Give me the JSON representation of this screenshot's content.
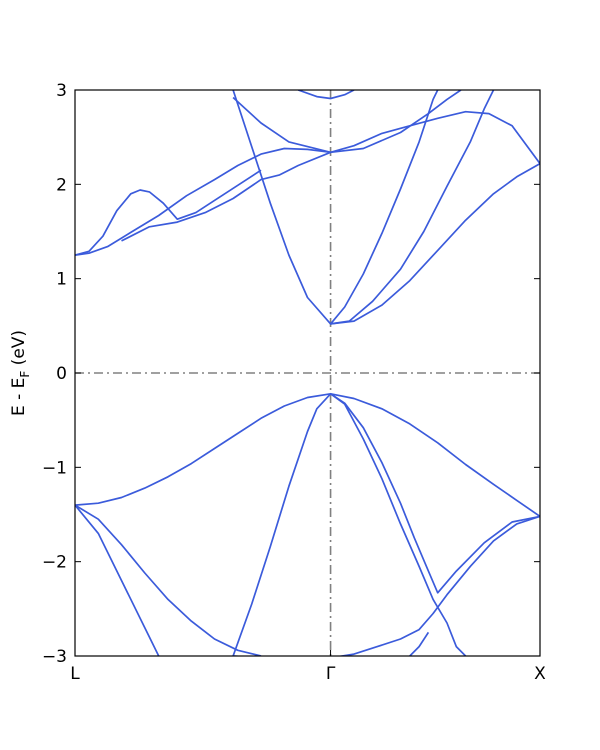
{
  "chart_data": {
    "type": "line",
    "xlabel": "",
    "ylabel": {
      "main": "E - E",
      "subscript": "F",
      "suffix": " (eV)"
    },
    "ylim": [
      -3,
      3
    ],
    "yticks": [
      {
        "value": 3,
        "label": "3"
      },
      {
        "value": 2,
        "label": "2"
      },
      {
        "value": 1,
        "label": "1"
      },
      {
        "value": 0,
        "label": "0"
      },
      {
        "value": -1,
        "label": "−1"
      },
      {
        "value": -2,
        "label": "−2"
      },
      {
        "value": -3,
        "label": "−3"
      }
    ],
    "xlim": [
      0,
      1
    ],
    "kpoints": [
      {
        "label": "L",
        "x": 0.0
      },
      {
        "label": "Γ",
        "x": 0.5496
      },
      {
        "label": "X",
        "x": 1.0
      }
    ],
    "fermi_level": 0,
    "grid": false,
    "line_color": "#3b5bdb",
    "ref_line_color": "#808080",
    "series": [
      {
        "points": [
          [
            0,
            1.25
          ],
          [
            0.03,
            1.27
          ],
          [
            0.07,
            1.34
          ],
          [
            0.12,
            1.49
          ],
          [
            0.18,
            1.67
          ],
          [
            0.24,
            1.88
          ],
          [
            0.3,
            2.05
          ],
          [
            0.35,
            2.2
          ],
          [
            0.4,
            2.32
          ],
          [
            0.45,
            2.38
          ],
          [
            0.5,
            2.37
          ],
          [
            0.5496,
            2.34
          ],
          [
            0.6,
            2.41
          ],
          [
            0.66,
            2.54
          ],
          [
            0.72,
            2.62
          ],
          [
            0.78,
            2.7
          ],
          [
            0.84,
            2.77
          ],
          [
            0.89,
            2.75
          ],
          [
            0.94,
            2.62
          ],
          [
            1.0,
            2.22
          ]
        ]
      },
      {
        "points": [
          [
            0,
            1.25
          ],
          [
            0.03,
            1.29
          ],
          [
            0.06,
            1.45
          ],
          [
            0.09,
            1.72
          ],
          [
            0.12,
            1.9
          ],
          [
            0.14,
            1.94
          ],
          [
            0.16,
            1.92
          ],
          [
            0.19,
            1.8
          ],
          [
            0.22,
            1.63
          ],
          [
            0.26,
            1.7
          ],
          [
            0.3,
            1.83
          ],
          [
            0.35,
            1.99
          ],
          [
            0.4,
            2.15
          ]
        ]
      },
      {
        "points": [
          [
            0,
            -1.4
          ],
          [
            0.05,
            -1.38
          ],
          [
            0.1,
            -1.32
          ],
          [
            0.15,
            -1.22
          ],
          [
            0.2,
            -1.1
          ],
          [
            0.25,
            -0.96
          ],
          [
            0.3,
            -0.8
          ],
          [
            0.35,
            -0.64
          ],
          [
            0.4,
            -0.48
          ],
          [
            0.45,
            -0.35
          ],
          [
            0.5,
            -0.26
          ],
          [
            0.5496,
            -0.22
          ],
          [
            0.6,
            -0.27
          ],
          [
            0.66,
            -0.38
          ],
          [
            0.72,
            -0.54
          ],
          [
            0.78,
            -0.74
          ],
          [
            0.84,
            -0.97
          ],
          [
            0.9,
            -1.18
          ],
          [
            0.95,
            -1.35
          ],
          [
            1.0,
            -1.52
          ]
        ]
      },
      {
        "points": [
          [
            0,
            -1.4
          ],
          [
            0.05,
            -1.55
          ],
          [
            0.1,
            -1.82
          ],
          [
            0.15,
            -2.12
          ],
          [
            0.2,
            -2.4
          ],
          [
            0.25,
            -2.63
          ],
          [
            0.3,
            -2.82
          ],
          [
            0.35,
            -2.94
          ],
          [
            0.4,
            -3.0
          ]
        ]
      },
      {
        "points": [
          [
            0,
            -1.4
          ],
          [
            0.05,
            -1.7
          ],
          [
            0.1,
            -2.2
          ],
          [
            0.15,
            -2.7
          ],
          [
            0.18,
            -3.0
          ]
        ]
      },
      {
        "points": [
          [
            0.34,
            -3.0
          ],
          [
            0.38,
            -2.45
          ],
          [
            0.42,
            -1.84
          ],
          [
            0.46,
            -1.2
          ],
          [
            0.5,
            -0.62
          ],
          [
            0.52,
            -0.38
          ],
          [
            0.5496,
            -0.22
          ],
          [
            0.58,
            -0.33
          ],
          [
            0.62,
            -0.7
          ],
          [
            0.66,
            -1.12
          ],
          [
            0.7,
            -1.6
          ],
          [
            0.74,
            -2.05
          ],
          [
            0.77,
            -2.4
          ],
          [
            0.8,
            -2.65
          ],
          [
            0.82,
            -2.9
          ],
          [
            0.84,
            -3.0
          ]
        ]
      },
      {
        "points": [
          [
            0.5496,
            -0.22
          ],
          [
            0.58,
            -0.32
          ],
          [
            0.62,
            -0.58
          ],
          [
            0.66,
            -0.95
          ],
          [
            0.7,
            -1.38
          ],
          [
            0.73,
            -1.75
          ],
          [
            0.76,
            -2.1
          ],
          [
            0.78,
            -2.33
          ],
          [
            0.82,
            -2.1
          ],
          [
            0.88,
            -1.8
          ],
          [
            0.94,
            -1.58
          ],
          [
            1.0,
            -1.52
          ]
        ]
      },
      {
        "points": [
          [
            0.34,
            -3.0
          ],
          [
            0.4,
            -3.02
          ],
          [
            0.45,
            -3.03
          ],
          [
            0.5496,
            -3.02
          ],
          [
            0.6,
            -2.98
          ],
          [
            0.65,
            -2.9
          ],
          [
            0.7,
            -2.82
          ],
          [
            0.74,
            -2.72
          ],
          [
            0.77,
            -2.55
          ],
          [
            0.8,
            -2.35
          ],
          [
            0.85,
            -2.05
          ],
          [
            0.9,
            -1.78
          ],
          [
            0.95,
            -1.6
          ],
          [
            1.0,
            -1.52
          ]
        ]
      },
      {
        "points": [
          [
            0.72,
            -3.0
          ],
          [
            0.74,
            -2.9
          ],
          [
            0.76,
            -2.75
          ]
        ]
      },
      {
        "points": [
          [
            0.34,
            3.0
          ],
          [
            0.38,
            2.4
          ],
          [
            0.42,
            1.8
          ],
          [
            0.46,
            1.25
          ],
          [
            0.5,
            0.8
          ],
          [
            0.5496,
            0.52
          ],
          [
            0.58,
            0.7
          ],
          [
            0.62,
            1.05
          ],
          [
            0.66,
            1.48
          ],
          [
            0.7,
            1.95
          ],
          [
            0.74,
            2.45
          ],
          [
            0.77,
            2.9
          ],
          [
            0.78,
            3.0
          ]
        ]
      },
      {
        "points": [
          [
            0.1,
            1.4
          ],
          [
            0.16,
            1.55
          ],
          [
            0.22,
            1.6
          ],
          [
            0.28,
            1.7
          ],
          [
            0.34,
            1.85
          ],
          [
            0.4,
            2.05
          ],
          [
            0.44,
            2.1
          ],
          [
            0.48,
            2.2
          ],
          [
            0.5496,
            2.34
          ]
        ]
      },
      {
        "points": [
          [
            0.5496,
            0.52
          ],
          [
            0.59,
            0.55
          ],
          [
            0.64,
            0.76
          ],
          [
            0.7,
            1.1
          ],
          [
            0.75,
            1.5
          ],
          [
            0.8,
            1.98
          ],
          [
            0.85,
            2.45
          ],
          [
            0.88,
            2.8
          ],
          [
            0.9,
            3.0
          ]
        ]
      },
      {
        "points": [
          [
            0.5496,
            0.52
          ],
          [
            0.6,
            0.55
          ],
          [
            0.66,
            0.72
          ],
          [
            0.72,
            0.98
          ],
          [
            0.78,
            1.3
          ],
          [
            0.84,
            1.62
          ],
          [
            0.9,
            1.9
          ],
          [
            0.95,
            2.08
          ],
          [
            1.0,
            2.22
          ]
        ]
      },
      {
        "points": [
          [
            0.34,
            2.92
          ],
          [
            0.4,
            2.65
          ],
          [
            0.46,
            2.45
          ],
          [
            0.5496,
            2.34
          ],
          [
            0.62,
            2.38
          ],
          [
            0.7,
            2.55
          ],
          [
            0.76,
            2.75
          ],
          [
            0.8,
            2.9
          ],
          [
            0.83,
            3.0
          ]
        ]
      },
      {
        "points": [
          [
            0.48,
            3.0
          ],
          [
            0.52,
            2.93
          ],
          [
            0.5496,
            2.91
          ],
          [
            0.58,
            2.95
          ],
          [
            0.6,
            3.0
          ]
        ]
      }
    ]
  }
}
